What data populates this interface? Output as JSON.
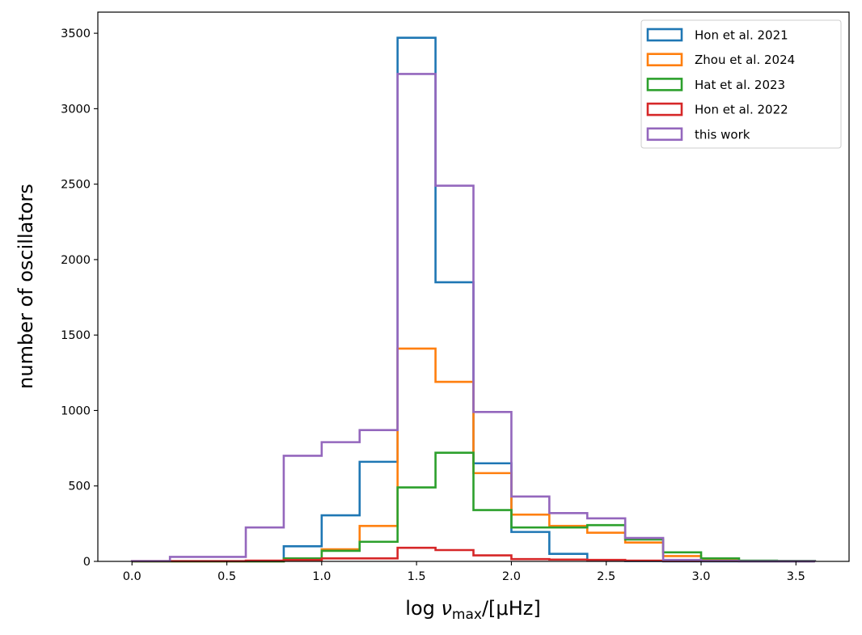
{
  "chart_data": {
    "type": "histogram-step",
    "title": "",
    "xlabel": "log ν_max/[μHz]",
    "xlabel_parts": {
      "prefix": "log ",
      "symbol": "ν",
      "subscript": "max",
      "suffix": "/[μHz]"
    },
    "ylabel": "number of oscillators",
    "xlim": [
      -0.18,
      3.78
    ],
    "ylim": [
      0,
      3640
    ],
    "grid": false,
    "legend_position": "top-right",
    "xticks": [
      0.0,
      0.5,
      1.0,
      1.5,
      2.0,
      2.5,
      3.0,
      3.5
    ],
    "xtick_labels": [
      "0.0",
      "0.5",
      "1.0",
      "1.5",
      "2.0",
      "2.5",
      "3.0",
      "3.5"
    ],
    "yticks": [
      0,
      500,
      1000,
      1500,
      2000,
      2500,
      3000,
      3500
    ],
    "ytick_labels": [
      "0",
      "500",
      "1000",
      "1500",
      "2000",
      "2500",
      "3000",
      "3500"
    ],
    "bin_edges": [
      0.0,
      0.2,
      0.4,
      0.6,
      0.8,
      1.0,
      1.2,
      1.4,
      1.6,
      1.8,
      2.0,
      2.2,
      2.4,
      2.6,
      2.8,
      3.0,
      3.2,
      3.4,
      3.6
    ],
    "series": [
      {
        "name": "Hon et al. 2021",
        "color": "#1f77b4",
        "values": [
          0,
          0,
          0,
          0,
          100,
          305,
          660,
          3470,
          1850,
          650,
          195,
          50,
          5,
          2,
          0,
          0,
          0,
          0
        ]
      },
      {
        "name": "Zhou et al. 2024",
        "color": "#ff7f0e",
        "values": [
          0,
          0,
          0,
          0,
          10,
          80,
          235,
          1410,
          1190,
          585,
          310,
          235,
          190,
          125,
          35,
          8,
          3,
          2
        ]
      },
      {
        "name": "Hat et al. 2023",
        "color": "#2ca02c",
        "values": [
          0,
          0,
          0,
          0,
          20,
          70,
          130,
          490,
          720,
          340,
          225,
          225,
          240,
          145,
          60,
          20,
          5,
          3
        ]
      },
      {
        "name": "Hon et al. 2022",
        "color": "#d62728",
        "values": [
          2,
          2,
          2,
          5,
          10,
          20,
          20,
          90,
          75,
          40,
          15,
          12,
          10,
          5,
          2,
          2,
          1,
          1
        ]
      },
      {
        "name": "this work",
        "color": "#9467bd",
        "values": [
          2,
          30,
          30,
          225,
          700,
          790,
          870,
          3230,
          2490,
          990,
          430,
          320,
          285,
          155,
          10,
          3,
          1,
          1
        ]
      }
    ]
  }
}
